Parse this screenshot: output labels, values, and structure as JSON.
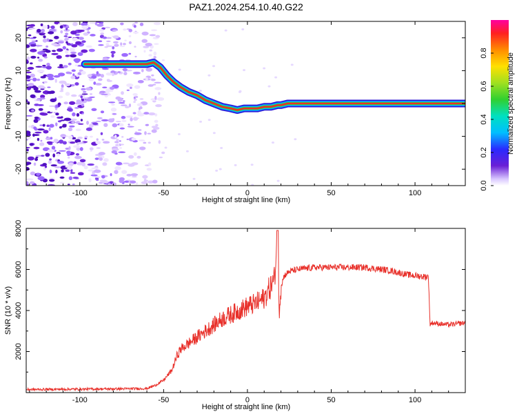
{
  "title": "PAZ1.2024.254.10.40.G22",
  "colors": {
    "snr_line": "#e8302a",
    "track": "#e8302a",
    "scatter": "#6a1fd6"
  },
  "chart_data": [
    {
      "type": "heatmap",
      "xlabel": "Height of straight line (km)",
      "ylabel": "Frequency (Hz)",
      "xlim": [
        -132,
        130
      ],
      "ylim": [
        -25,
        25
      ],
      "xticks": [
        -100,
        -50,
        0,
        50,
        100
      ],
      "yticks": [
        -20,
        -10,
        0,
        10,
        20
      ],
      "colorbar": {
        "label": "Normalized spectral amplitude",
        "range": [
          0,
          1
        ],
        "ticks": [
          0.0,
          0.2,
          0.4,
          0.6,
          0.8
        ],
        "tick_labels": [
          "0.0",
          "0.2",
          "0.4",
          "0.6",
          "0.8"
        ]
      },
      "ridge": {
        "x": [
          -97,
          -90,
          -80,
          -70,
          -60,
          -56,
          -52,
          -48,
          -44,
          -40,
          -35,
          -30,
          -25,
          -20,
          -15,
          -10,
          -6,
          -2,
          2,
          6,
          10,
          14,
          18,
          20,
          24,
          30,
          40,
          60,
          80,
          100,
          130
        ],
        "y": [
          12,
          12,
          12,
          12,
          12,
          12.5,
          11,
          8.5,
          6.5,
          5,
          3.5,
          2.5,
          1,
          0,
          -1,
          -1.5,
          -2,
          -1.5,
          -1.5,
          -1.5,
          -1,
          -1,
          -0.5,
          -0.5,
          0,
          0,
          0,
          0,
          0,
          0,
          0
        ]
      }
    },
    {
      "type": "line",
      "xlabel": "Height of straight line (km)",
      "ylabel": "SNR (10 * v/v)",
      "xlim": [
        -132,
        130
      ],
      "ylim": [
        0,
        8000
      ],
      "xticks": [
        -100,
        -50,
        0,
        50,
        100
      ],
      "yticks": [
        2000,
        4000,
        6000,
        8000
      ],
      "series": [
        {
          "x": [
            -132,
            -100,
            -80,
            -60,
            -55,
            -50,
            -45,
            -42,
            -40,
            -35,
            -30,
            -25,
            -20,
            -15,
            -10,
            -5,
            0,
            5,
            10,
            12,
            14,
            16,
            17,
            18,
            19,
            20,
            22,
            25,
            30,
            40,
            50,
            60,
            70,
            75,
            80,
            85,
            90,
            95,
            100,
            105,
            108,
            109,
            110,
            115,
            120,
            125,
            130
          ],
          "y": [
            150,
            170,
            180,
            200,
            350,
            600,
            1100,
            1800,
            2100,
            2400,
            2700,
            3000,
            3300,
            3600,
            3800,
            4000,
            4200,
            4350,
            4600,
            4900,
            5200,
            5500,
            6500,
            7500,
            4000,
            5200,
            5700,
            5900,
            6000,
            6100,
            6100,
            6100,
            6100,
            6050,
            6000,
            5950,
            5850,
            5750,
            5700,
            5650,
            5650,
            3300,
            3400,
            3350,
            3300,
            3350,
            3400
          ]
        }
      ]
    }
  ]
}
